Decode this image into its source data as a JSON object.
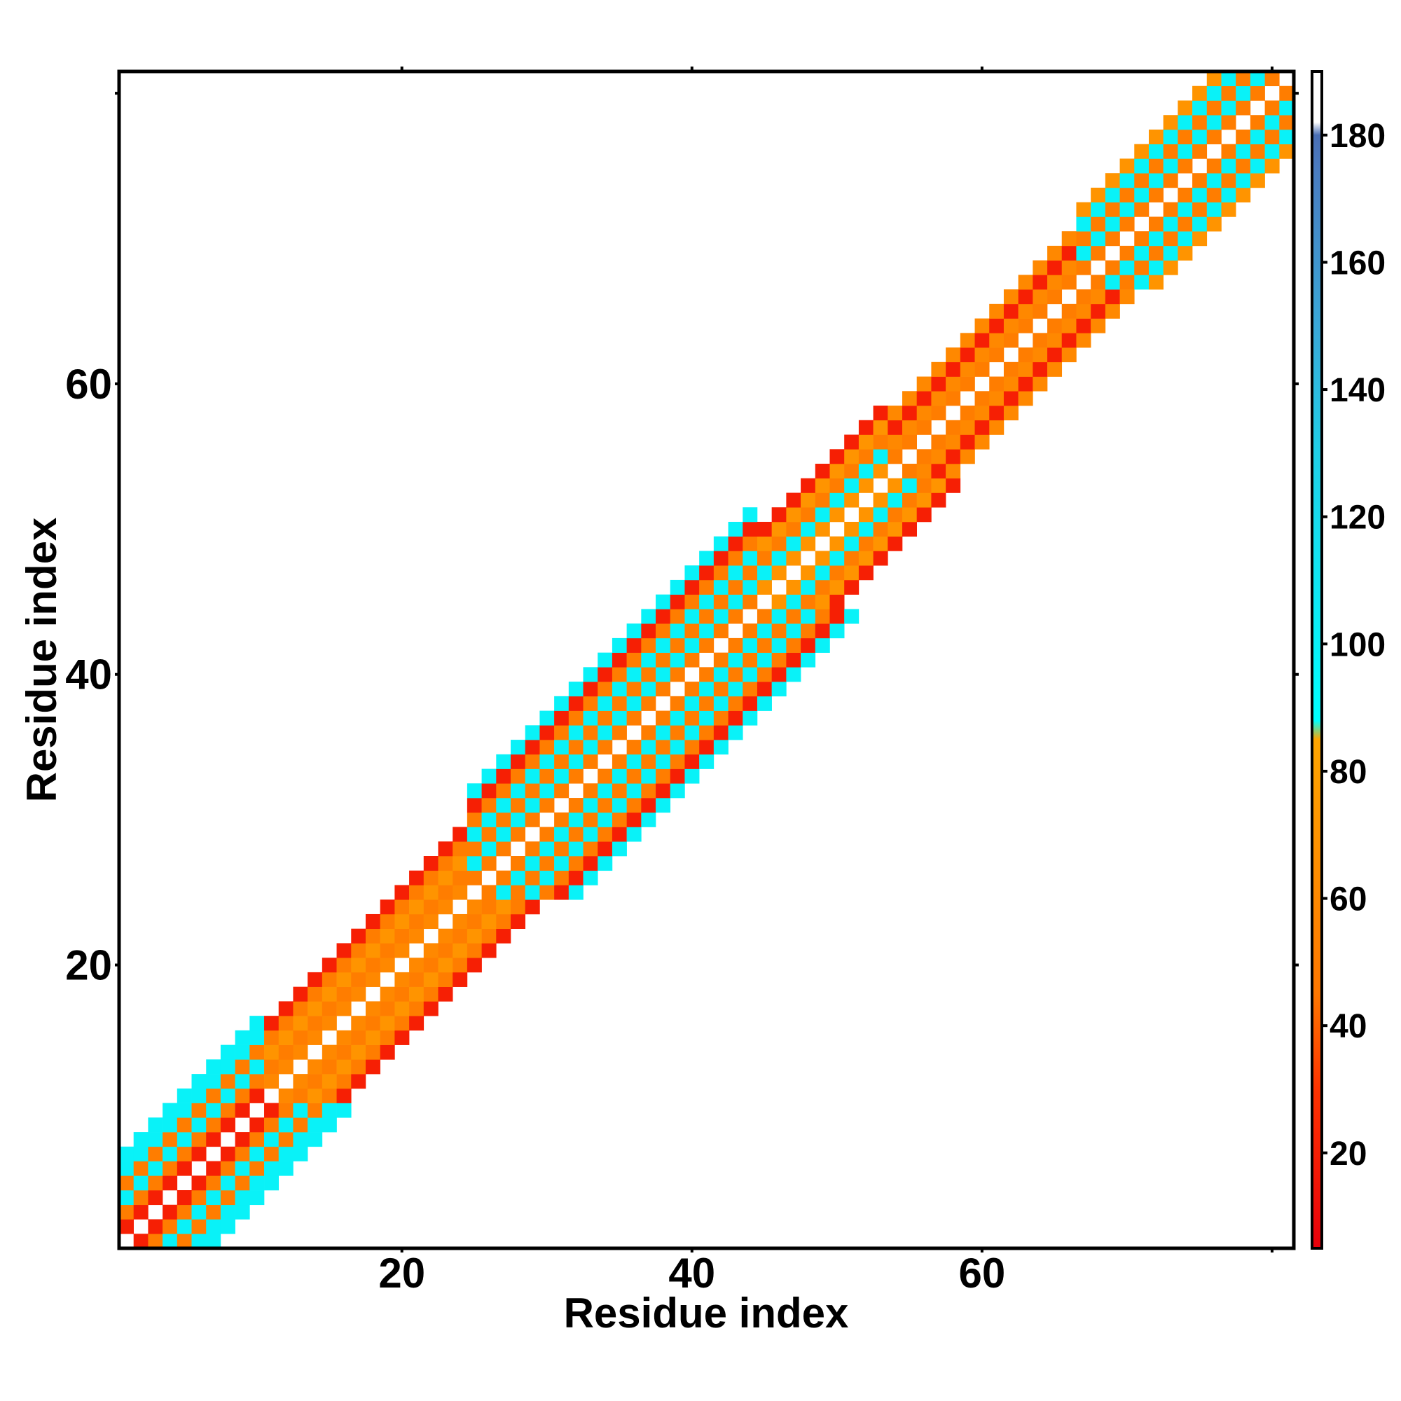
{
  "chart_data": {
    "type": "heatmap",
    "title": "",
    "xlabel": "Residue index",
    "ylabel": "Residue index",
    "xlim": [
      0.5,
      81.5
    ],
    "ylim": [
      0.5,
      81.5
    ],
    "x_ticks": [
      20,
      40,
      60
    ],
    "y_ticks": [
      20,
      40,
      60
    ],
    "grid": false,
    "colorbar": {
      "ticks": [
        20,
        40,
        60,
        80,
        100,
        120,
        140,
        160,
        180
      ],
      "range": [
        5,
        190
      ],
      "stops": [
        {
          "value": 5,
          "color": "#e8000b"
        },
        {
          "value": 30,
          "color": "#ff3300"
        },
        {
          "value": 45,
          "color": "#ff7700"
        },
        {
          "value": 85,
          "color": "#ffa500"
        },
        {
          "value": 88,
          "color": "#00ffff"
        },
        {
          "value": 130,
          "color": "#20d0e8"
        },
        {
          "value": 150,
          "color": "#3aa8d8"
        },
        {
          "value": 175,
          "color": "#4a7bc0"
        },
        {
          "value": 180,
          "color": "#4a6fb5"
        },
        {
          "value": 182,
          "color": "#ffffff"
        },
        {
          "value": 190,
          "color": "#ffffff"
        }
      ]
    },
    "band_pattern": [
      {
        "from": 1,
        "to": 10,
        "offsets": [
          1,
          2,
          3,
          4,
          5,
          6
        ],
        "values": [
          20,
          50,
          100,
          50,
          100,
          100
        ]
      },
      {
        "from": 11,
        "to": 24,
        "offsets": [
          1,
          2,
          3,
          4,
          5
        ],
        "values": [
          60,
          50,
          70,
          50,
          20
        ]
      },
      {
        "from": 25,
        "to": 44,
        "offsets": [
          1,
          2,
          3,
          4,
          5,
          6,
          7
        ],
        "values": [
          50,
          100,
          50,
          100,
          50,
          20,
          100
        ]
      },
      {
        "from": 45,
        "to": 53,
        "offsets": [
          1,
          2,
          3,
          4,
          5
        ],
        "values": [
          70,
          100,
          50,
          70,
          20
        ]
      },
      {
        "from": 54,
        "to": 66,
        "offsets": [
          1,
          2,
          3,
          4
        ],
        "values": [
          50,
          60,
          20,
          60
        ]
      },
      {
        "from": 67,
        "to": 81,
        "offsets": [
          1,
          2,
          3,
          4,
          5
        ],
        "values": [
          50,
          100,
          50,
          100,
          70
        ]
      }
    ]
  }
}
